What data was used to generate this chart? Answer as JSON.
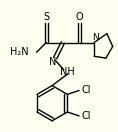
{
  "background_color": "#fffff0",
  "bond_color": "#000000",
  "bond_width": 1.0,
  "text_color": "#000000",
  "figsize": [
    1.18,
    1.32
  ],
  "dpi": 100,
  "atoms": {
    "S_label": "S",
    "O_label": "O",
    "N_label": "N",
    "NH_label": "NH",
    "N_imine": "N",
    "H2N_label": "H₂N",
    "Cl1_label": "Cl",
    "Cl2_label": "Cl"
  }
}
